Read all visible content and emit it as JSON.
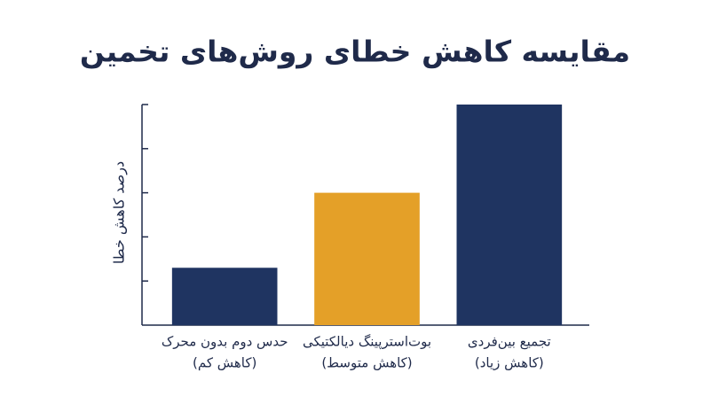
{
  "chart_data": {
    "type": "bar",
    "title": "مقایسه کاهش خطای روش‌های تخمین",
    "y_label": "درصد کاهش خطا",
    "categories": [
      "حدس دوم بدون محرک",
      "بوت‌استرپینگ دیالکتیکی",
      "تجمیع بین‌فردی"
    ],
    "category_notes": [
      "(کاهش کم)",
      "(کاهش متوسط)",
      "(کاهش زیاد)"
    ],
    "values": [
      13,
      30,
      50
    ],
    "colors": [
      "#1f3461",
      "#e4a028",
      "#1f3461"
    ],
    "ylim": [
      0,
      50
    ],
    "yticks": [
      10,
      20,
      30,
      40,
      50
    ]
  }
}
